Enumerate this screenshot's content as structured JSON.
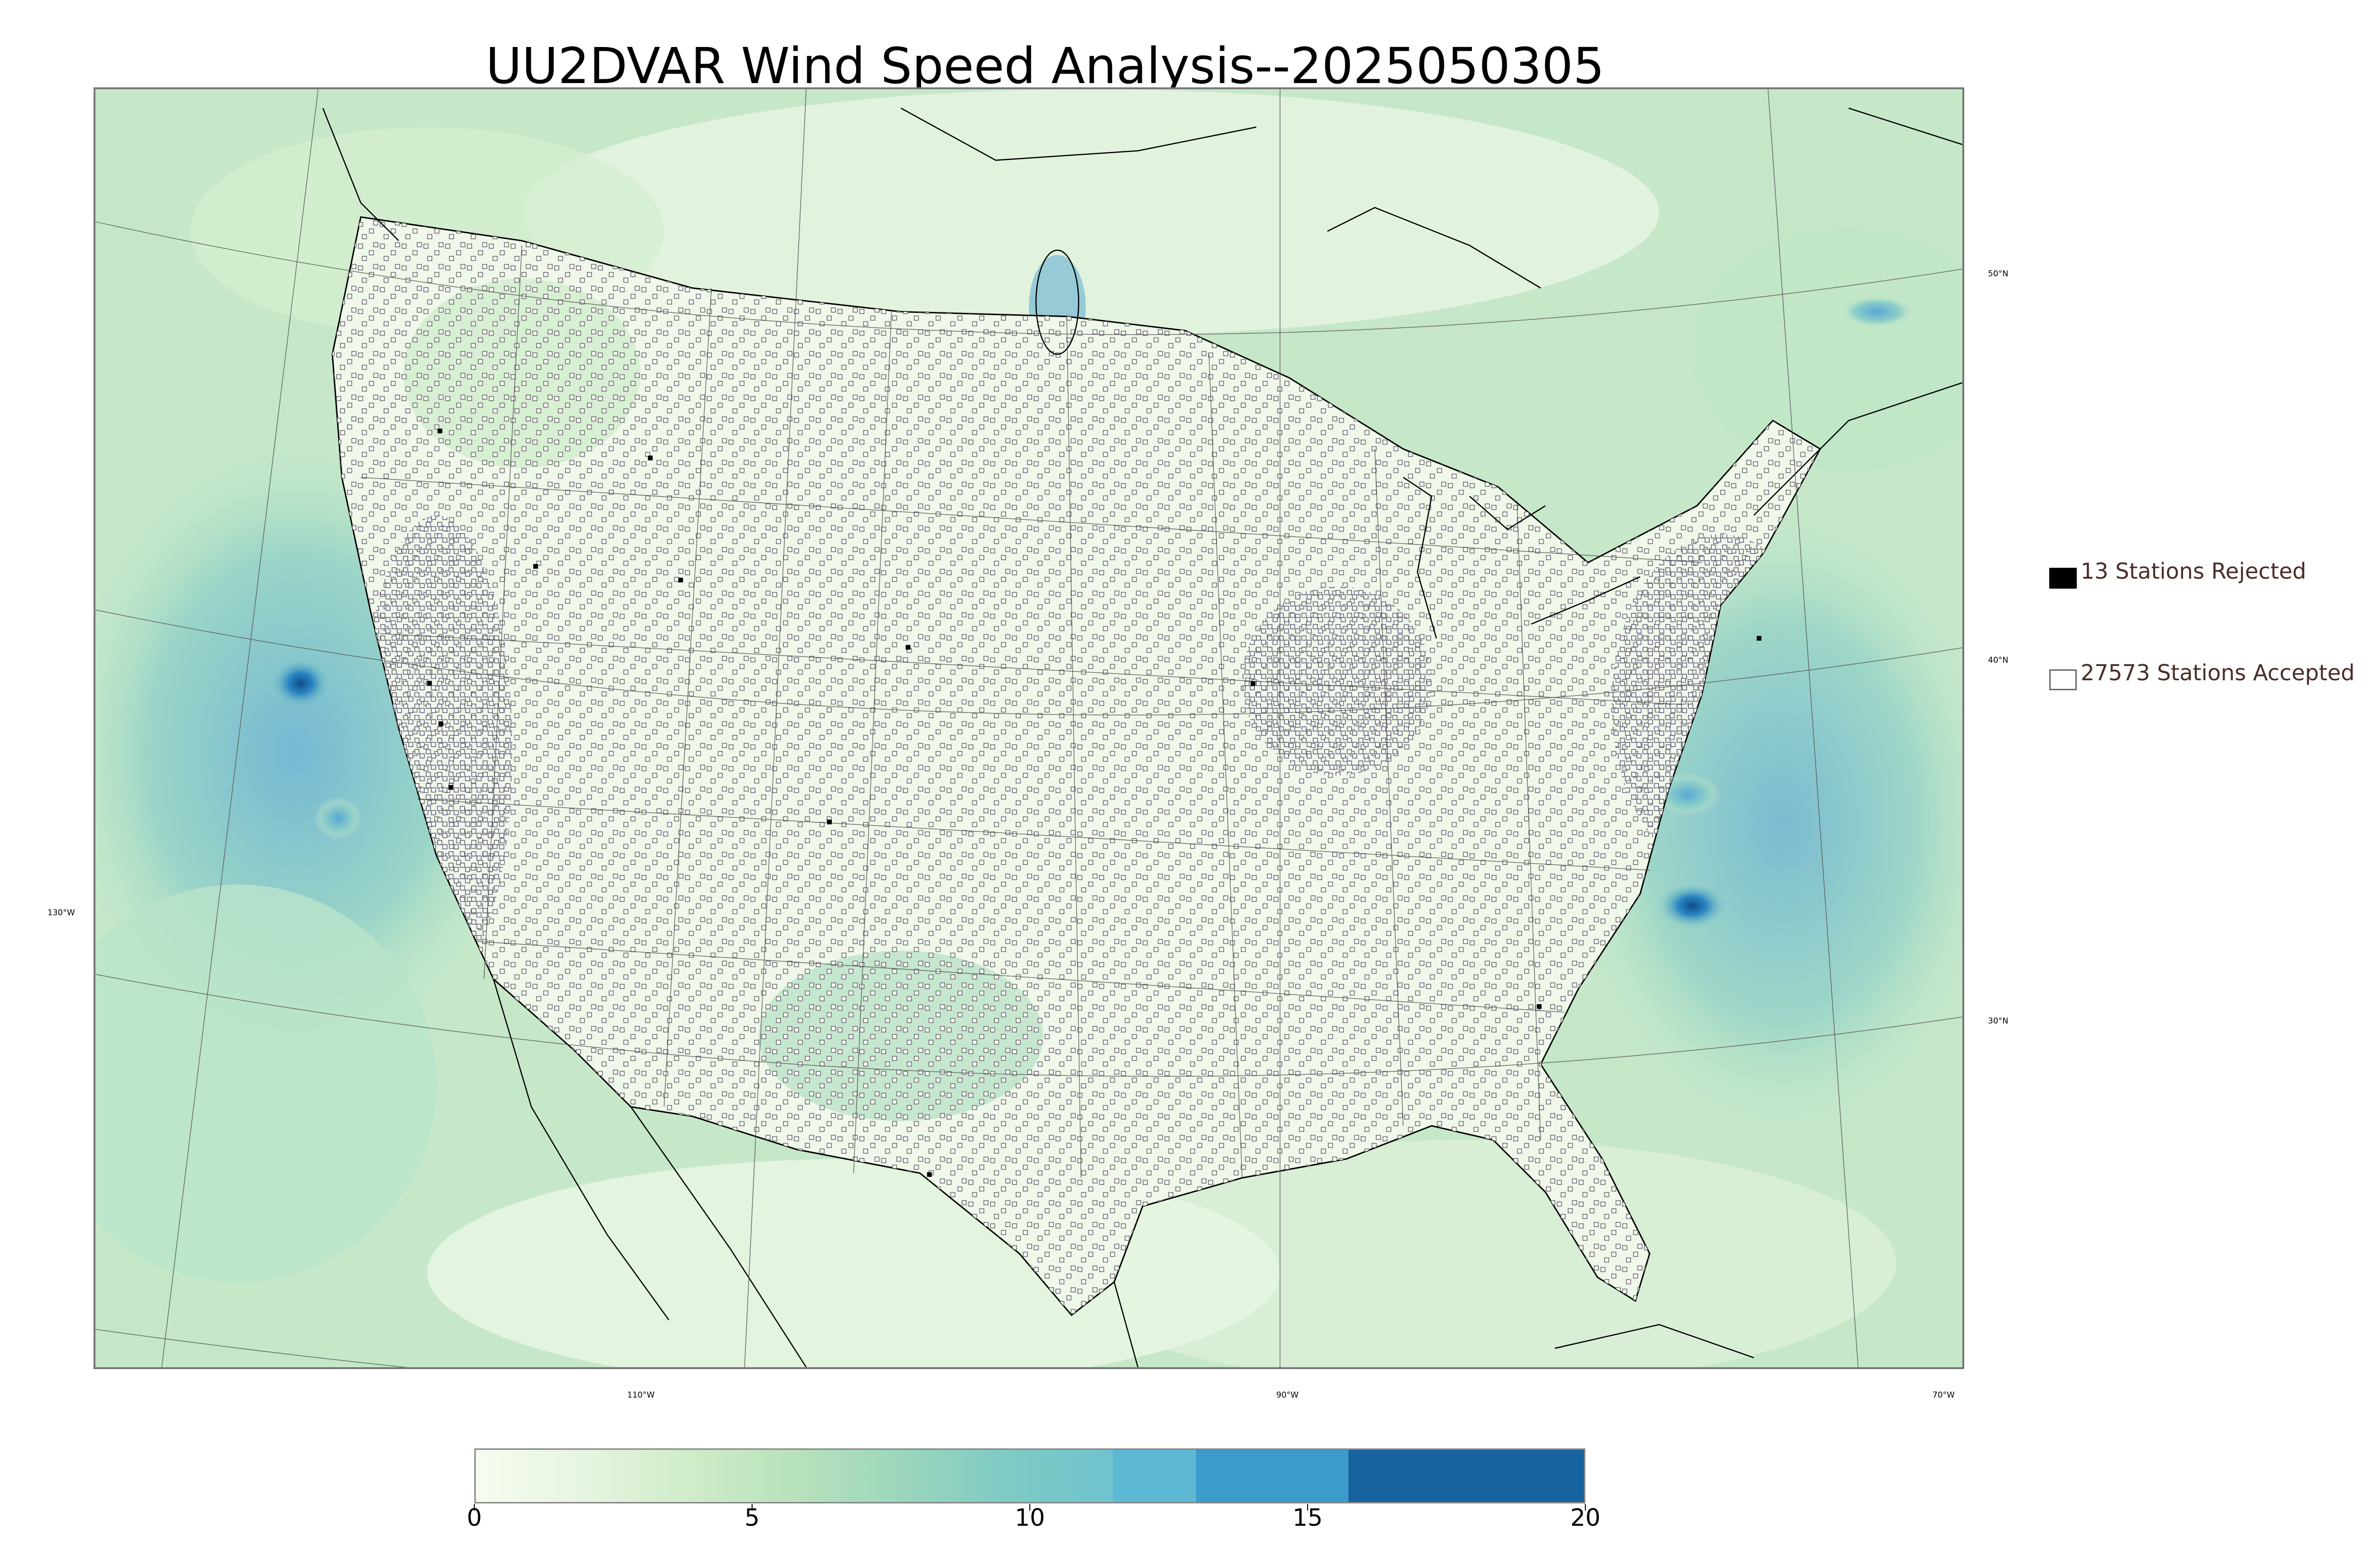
{
  "title": "UU2DVAR Wind Speed Analysis--2025050305",
  "map": {
    "projection": "lambert-conformal",
    "region": "Contiguous United States",
    "field": "wind speed",
    "colormap": [
      "#f7fcf0",
      "#e0f3db",
      "#ccebc5",
      "#a8ddb5",
      "#7bccc4",
      "#4eb3d3",
      "#2b8cbe",
      "#0868ac"
    ],
    "land_outline_color": "#000000",
    "graticule_color": "#555555",
    "latitude_labels": [
      "50°N",
      "40°N",
      "30°N"
    ],
    "longitude_labels": [
      "130°W",
      "110°W",
      "90°W",
      "70°W"
    ]
  },
  "legend": {
    "rejected": {
      "label": "13 Stations Rejected",
      "marker": "filled-black-square",
      "color": "#000000"
    },
    "accepted": {
      "label": "27573 Stations Accepted",
      "marker": "open-square",
      "color": "#6b6b6b"
    }
  },
  "colorbar": {
    "min": 0,
    "max": 20,
    "ticks": [
      "0",
      "5",
      "10",
      "15",
      "20"
    ],
    "bands": [
      {
        "from": 0,
        "to": 11.5,
        "colors": [
          "#f7fcf0",
          "#e6f5e0",
          "#d0ecc9",
          "#b8e2bb",
          "#9cd6bc",
          "#7ecbc4",
          "#6fc3cf"
        ]
      },
      {
        "from": 11.5,
        "to": 13,
        "colors": [
          "#5db8d4"
        ]
      },
      {
        "from": 13,
        "to": 15.75,
        "colors": [
          "#3b9bcb"
        ]
      },
      {
        "from": 15.75,
        "to": 20,
        "colors": [
          "#1763a0"
        ]
      }
    ]
  }
}
